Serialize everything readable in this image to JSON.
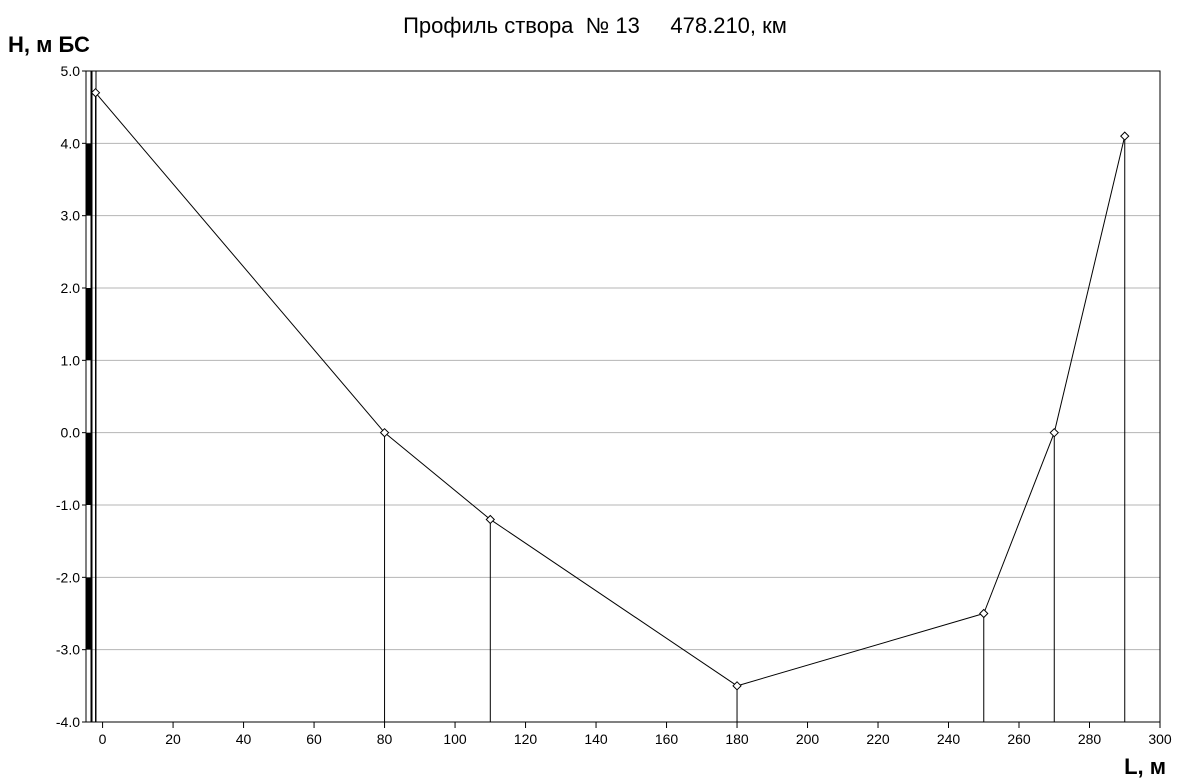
{
  "chart_data": {
    "type": "line",
    "title": "Профиль створа  № 13     478.210, км",
    "ylabel": "Н, м БС",
    "xlabel": "L, м",
    "xlim": [
      -3,
      300
    ],
    "ylim": [
      -4.0,
      5.0
    ],
    "x_ticks": [
      0,
      20,
      40,
      60,
      80,
      100,
      120,
      140,
      160,
      180,
      200,
      220,
      240,
      260,
      280,
      300
    ],
    "x_tick_labels": [
      "0",
      "20",
      "40",
      "60",
      "80",
      "100",
      "120",
      "140",
      "160",
      "180",
      "200",
      "220",
      "240",
      "260",
      "280",
      "300"
    ],
    "y_ticks": [
      -4.0,
      -3.0,
      -2.0,
      -1.0,
      0.0,
      1.0,
      2.0,
      3.0,
      4.0,
      5.0
    ],
    "y_tick_labels": [
      "-4.0",
      "-3.0",
      "-2.0",
      "-1.0",
      "0.0",
      "1.0",
      "2.0",
      "3.0",
      "4.0",
      "5.0"
    ],
    "grid": "horizontal",
    "series": [
      {
        "color": "#000000",
        "marker": "diamond",
        "x": [
          -2,
          80,
          110,
          180,
          250,
          270,
          290
        ],
        "y": [
          4.7,
          0.0,
          -1.2,
          -3.5,
          -2.5,
          0.0,
          4.1
        ]
      }
    ],
    "drop_lines": true,
    "colors": {
      "line": "#000000",
      "grid": "#b4b4b4",
      "background": "#ffffff"
    }
  }
}
